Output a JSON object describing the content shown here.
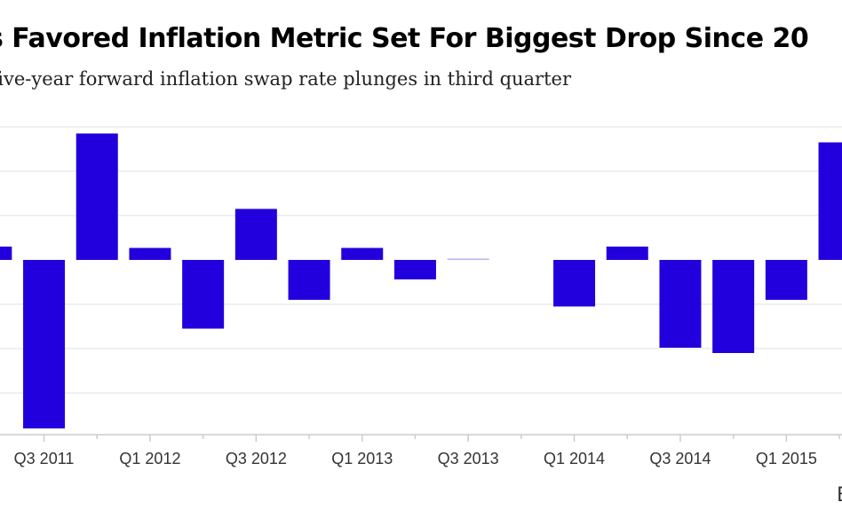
{
  "chart_data": {
    "type": "bar",
    "title": "s Favored Inflation Metric Set For Biggest Drop Since 20",
    "subtitle": "five-year forward inflation swap rate plunges in third quarter",
    "source": "B",
    "xlabel": "",
    "ylabel": "",
    "ylim": [
      -0.4,
      0.3
    ],
    "grid": true,
    "colors": {
      "bar": "#2200dd",
      "grid": "#e6e6e6",
      "axis": "#cccccc",
      "text": "#333333"
    },
    "categories": [
      "Q2 2011",
      "Q3 2011",
      "Q4 2011",
      "Q1 2012",
      "Q2 2012",
      "Q3 2012",
      "Q4 2012",
      "Q1 2013",
      "Q2 2013",
      "Q3 2013",
      "Q4 2013",
      "Q1 2014",
      "Q2 2014",
      "Q3 2014",
      "Q4 2014",
      "Q1 2015",
      "Q2 2015"
    ],
    "values": [
      0.03,
      -0.38,
      0.285,
      0.027,
      -0.155,
      0.115,
      -0.09,
      0.027,
      -0.044,
      0.003,
      0.0,
      -0.105,
      0.03,
      -0.198,
      -0.21,
      -0.09,
      0.265
    ],
    "tick_labels": [
      "Q3 2011",
      "Q1 2012",
      "Q3 2012",
      "Q1 2013",
      "Q3 2013",
      "Q1 2014",
      "Q3 2014",
      "Q1 2015"
    ]
  }
}
